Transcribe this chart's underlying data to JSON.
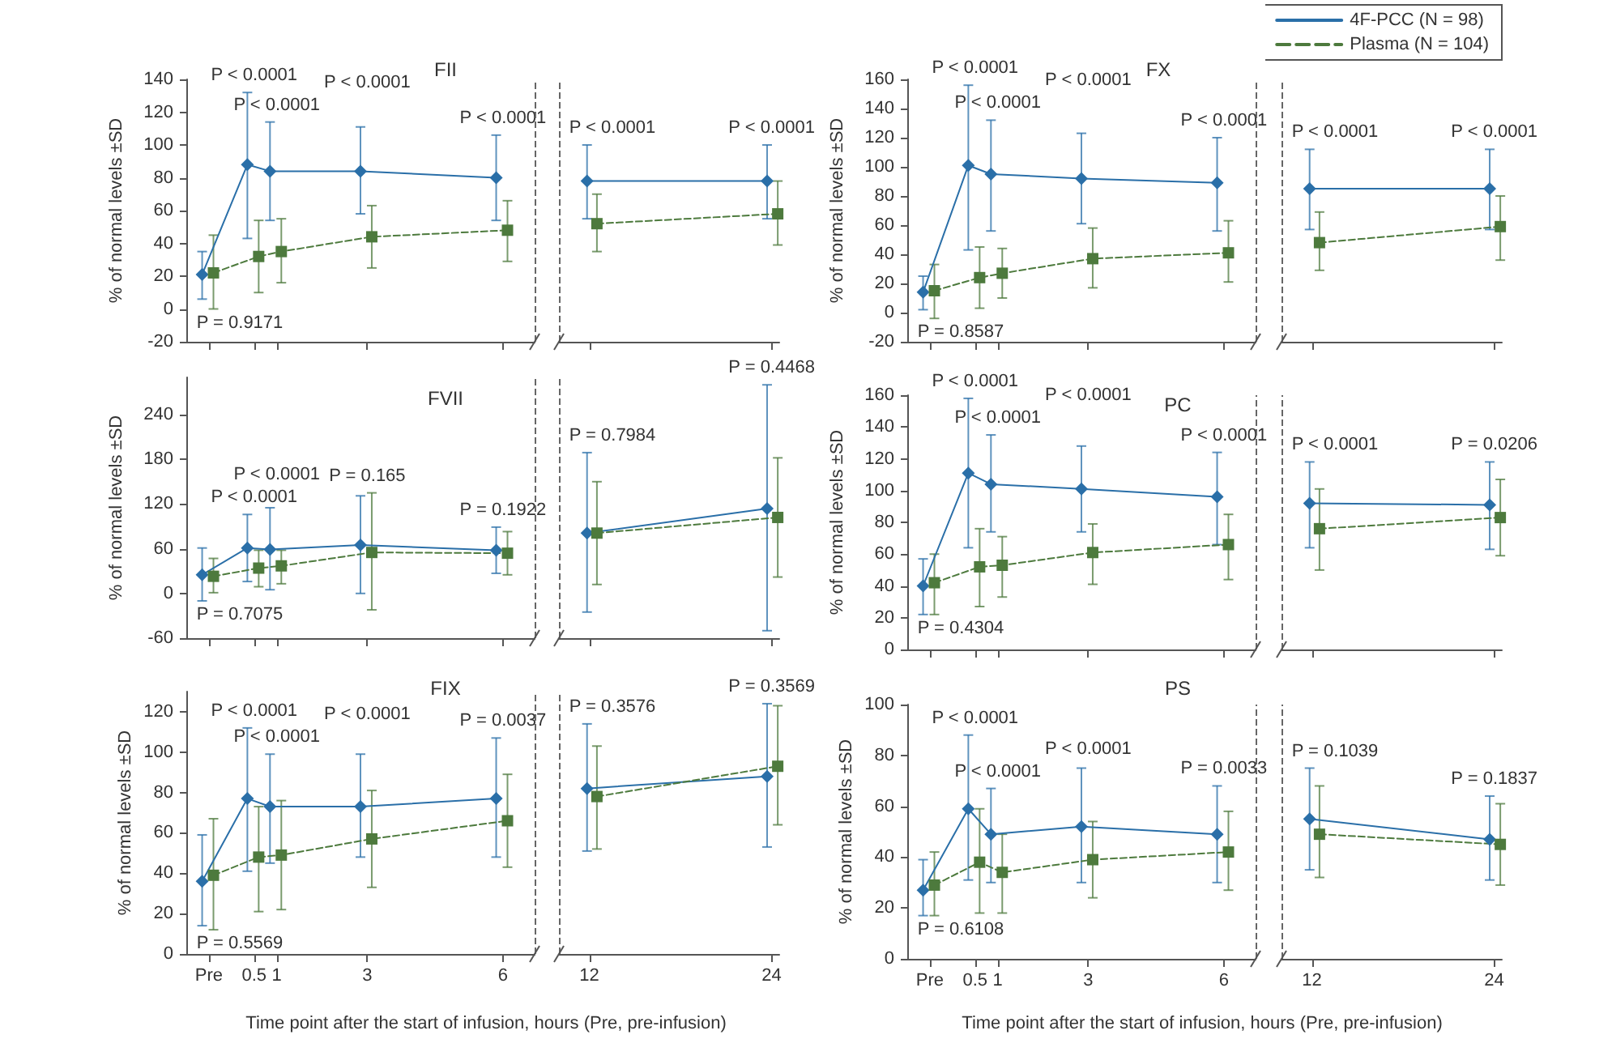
{
  "chart_data": [
    {
      "type": "line",
      "title": "FII",
      "ylabel": "% of normal levels ±SD",
      "tick_labels": "y",
      "xlim": [
        -1,
        6.7
      ],
      "ylim": [
        -20,
        140
      ],
      "xticks": [
        -0.5,
        0.5,
        1,
        3,
        6
      ],
      "yticks": [
        -20,
        0,
        20,
        40,
        60,
        80,
        100,
        120,
        140
      ],
      "series": [
        {
          "color": "#2a6fa8",
          "marker": "diamond",
          "line_style": "solid",
          "x": [
            -0.65,
            0.35,
            0.85,
            2.85,
            5.85
          ],
          "values": [
            21,
            88,
            84,
            84,
            80
          ],
          "errors": [
            [
              6,
              35
            ],
            [
              43,
              132
            ],
            [
              54,
              114
            ],
            [
              58,
              111
            ],
            [
              54,
              106
            ]
          ]
        },
        {
          "color": "#4d7a3d",
          "marker": "square",
          "line_style": "dashed",
          "x": [
            -0.4,
            0.6,
            1.1,
            3.1,
            6.1
          ],
          "values": [
            22,
            32,
            35,
            44,
            48
          ],
          "errors": [
            [
              0,
              45
            ],
            [
              10,
              54
            ],
            [
              16,
              55
            ],
            [
              25,
              63
            ],
            [
              29,
              66
            ]
          ]
        }
      ],
      "ref_lines": [
        {
          "axis": "x",
          "value": 6.7,
          "color": "#666666",
          "line_style": "dashed"
        }
      ],
      "annotations": [
        "P = 0.9171",
        "P < 0.0001",
        "P < 0.0001",
        "P < 0.0001",
        "P < 0.0001"
      ]
    },
    {
      "type": "line",
      "tick_labels": false,
      "xlim": [
        10,
        24.5
      ],
      "ylim": [
        -20,
        140
      ],
      "xticks": [
        12,
        24
      ],
      "series": [
        {
          "color": "#2a6fa8",
          "marker": "diamond",
          "line_style": "solid",
          "x": [
            11.85,
            23.7
          ],
          "values": [
            78,
            78
          ],
          "errors": [
            [
              55,
              100
            ],
            [
              55,
              100
            ]
          ]
        },
        {
          "color": "#4d7a3d",
          "marker": "square",
          "line_style": "dashed",
          "x": [
            12.5,
            24.4
          ],
          "values": [
            52,
            58
          ],
          "errors": [
            [
              35,
              70
            ],
            [
              39,
              78
            ]
          ]
        }
      ],
      "ref_lines": [
        {
          "axis": "x",
          "value": 10,
          "color": "#666666",
          "line_style": "dashed"
        }
      ],
      "annotations": [
        "P < 0.0001",
        "P < 0.0001"
      ]
    },
    {
      "type": "line",
      "title": "FX",
      "ylabel": "% of normal levels ±SD",
      "tick_labels": "y",
      "xlim": [
        -1,
        6.7
      ],
      "ylim": [
        -20,
        160
      ],
      "xticks": [
        -0.5,
        0.5,
        1,
        3,
        6
      ],
      "yticks": [
        -20,
        0,
        20,
        40,
        60,
        80,
        100,
        120,
        140,
        160
      ],
      "series": [
        {
          "color": "#2a6fa8",
          "marker": "diamond",
          "line_style": "solid",
          "x": [
            -0.65,
            0.35,
            0.85,
            2.85,
            5.85
          ],
          "values": [
            14,
            101,
            95,
            92,
            89
          ],
          "errors": [
            [
              2,
              25
            ],
            [
              43,
              156
            ],
            [
              56,
              132
            ],
            [
              61,
              123
            ],
            [
              56,
              120
            ]
          ]
        },
        {
          "color": "#4d7a3d",
          "marker": "square",
          "line_style": "dashed",
          "x": [
            -0.4,
            0.6,
            1.1,
            3.1,
            6.1
          ],
          "values": [
            15,
            24,
            27,
            37,
            41
          ],
          "errors": [
            [
              -4,
              33
            ],
            [
              3,
              45
            ],
            [
              10,
              44
            ],
            [
              17,
              58
            ],
            [
              21,
              63
            ]
          ]
        }
      ],
      "ref_lines": [
        {
          "axis": "x",
          "value": 6.7,
          "color": "#666666",
          "line_style": "dashed"
        }
      ],
      "annotations": [
        "P = 0.8587",
        "P < 0.0001",
        "P < 0.0001",
        "P < 0.0001",
        "P < 0.0001"
      ]
    },
    {
      "type": "line",
      "tick_labels": false,
      "legend": "top right",
      "xlim": [
        10,
        24.5
      ],
      "ylim": [
        -20,
        160
      ],
      "xticks": [
        12,
        24
      ],
      "series": [
        {
          "name": "4F-PCC (N = 98)",
          "color": "#2a6fa8",
          "marker": "diamond",
          "line_style": "solid",
          "x": [
            11.85,
            23.7
          ],
          "values": [
            85,
            85
          ],
          "errors": [
            [
              57,
              112
            ],
            [
              57,
              112
            ]
          ]
        },
        {
          "name": "Plasma (N = 104)",
          "color": "#4d7a3d",
          "marker": "square",
          "line_style": "dashed",
          "x": [
            12.5,
            24.4
          ],
          "values": [
            48,
            59
          ],
          "errors": [
            [
              29,
              69
            ],
            [
              36,
              80
            ]
          ]
        }
      ],
      "ref_lines": [
        {
          "axis": "x",
          "value": 10,
          "color": "#666666",
          "line_style": "dashed"
        }
      ],
      "annotations": [
        "P < 0.0001",
        "P < 0.0001"
      ]
    },
    {
      "type": "line",
      "title": "FVII",
      "ylabel": "% of normal levels ±SD",
      "tick_labels": "y",
      "xlim": [
        -1,
        6.7
      ],
      "ylim": [
        -60,
        290
      ],
      "xticks": [
        -0.5,
        0.5,
        1,
        3,
        6
      ],
      "yticks": [
        -60,
        0,
        60,
        120,
        180,
        240
      ],
      "series": [
        {
          "color": "#2a6fa8",
          "marker": "diamond",
          "line_style": "solid",
          "x": [
            -0.65,
            0.35,
            0.85,
            2.85,
            5.85
          ],
          "values": [
            25,
            61,
            59,
            65,
            58
          ],
          "errors": [
            [
              -10,
              61
            ],
            [
              16,
              106
            ],
            [
              5,
              115
            ],
            [
              0,
              131
            ],
            [
              27,
              89
            ]
          ]
        },
        {
          "color": "#4d7a3d",
          "marker": "square",
          "line_style": "dashed",
          "x": [
            -0.4,
            0.6,
            1.1,
            3.1,
            6.1
          ],
          "values": [
            23,
            34,
            37,
            55,
            54
          ],
          "errors": [
            [
              1,
              47
            ],
            [
              9,
              58
            ],
            [
              13,
              58
            ],
            [
              -22,
              135
            ],
            [
              25,
              83
            ]
          ]
        }
      ],
      "ref_lines": [
        {
          "axis": "x",
          "value": 6.7,
          "color": "#666666",
          "line_style": "dashed"
        }
      ],
      "annotations": [
        "P = 0.7075",
        "P < 0.0001",
        "P < 0.0001",
        "P = 0.165",
        "P = 0.1922"
      ]
    },
    {
      "type": "line",
      "tick_labels": false,
      "xlim": [
        10,
        24.5
      ],
      "ylim": [
        -60,
        290
      ],
      "xticks": [
        12,
        24
      ],
      "series": [
        {
          "color": "#2a6fa8",
          "marker": "diamond",
          "line_style": "solid",
          "x": [
            11.85,
            23.7
          ],
          "values": [
            81,
            114
          ],
          "errors": [
            [
              -25,
              189
            ],
            [
              -50,
              280
            ]
          ]
        },
        {
          "color": "#4d7a3d",
          "marker": "square",
          "line_style": "dashed",
          "x": [
            12.5,
            24.4
          ],
          "values": [
            81,
            102
          ],
          "errors": [
            [
              12,
              150
            ],
            [
              22,
              182
            ]
          ]
        }
      ],
      "ref_lines": [
        {
          "axis": "x",
          "value": 10,
          "color": "#666666",
          "line_style": "dashed"
        }
      ],
      "annotations": [
        "P = 0.7984",
        "P = 0.4468"
      ]
    },
    {
      "type": "line",
      "title": "PC",
      "ylabel": "% of normal levels ±SD",
      "tick_labels": "y",
      "xlim": [
        -1,
        6.7
      ],
      "ylim": [
        0,
        160
      ],
      "xticks": [
        -0.5,
        0.5,
        1,
        3,
        6
      ],
      "yticks": [
        0,
        20,
        40,
        60,
        80,
        100,
        120,
        140,
        160
      ],
      "series": [
        {
          "color": "#2a6fa8",
          "marker": "diamond",
          "line_style": "solid",
          "x": [
            -0.65,
            0.35,
            0.85,
            2.85,
            5.85
          ],
          "values": [
            40,
            111,
            104,
            101,
            96
          ],
          "errors": [
            [
              22,
              57
            ],
            [
              64,
              158
            ],
            [
              74,
              135
            ],
            [
              74,
              128
            ],
            [
              66,
              124
            ]
          ]
        },
        {
          "color": "#4d7a3d",
          "marker": "square",
          "line_style": "dashed",
          "x": [
            -0.4,
            0.6,
            1.1,
            3.1,
            6.1
          ],
          "values": [
            42,
            52,
            53,
            61,
            66
          ],
          "errors": [
            [
              22,
              60
            ],
            [
              27,
              76
            ],
            [
              33,
              71
            ],
            [
              41,
              79
            ],
            [
              44,
              85
            ]
          ]
        }
      ],
      "ref_lines": [
        {
          "axis": "x",
          "value": 6.7,
          "color": "#666666",
          "line_style": "dashed"
        }
      ],
      "annotations": [
        "P = 0.4304",
        "P < 0.0001",
        "P < 0.0001",
        "P < 0.0001",
        "P < 0.0001"
      ]
    },
    {
      "type": "line",
      "tick_labels": false,
      "xlim": [
        10,
        24.5
      ],
      "ylim": [
        0,
        160
      ],
      "xticks": [
        12,
        24
      ],
      "series": [
        {
          "color": "#2a6fa8",
          "marker": "diamond",
          "line_style": "solid",
          "x": [
            11.85,
            23.7
          ],
          "values": [
            92,
            91
          ],
          "errors": [
            [
              64,
              118
            ],
            [
              63,
              118
            ]
          ]
        },
        {
          "color": "#4d7a3d",
          "marker": "square",
          "line_style": "dashed",
          "x": [
            12.5,
            24.4
          ],
          "values": [
            76,
            83
          ],
          "errors": [
            [
              50,
              101
            ],
            [
              59,
              107
            ]
          ]
        }
      ],
      "ref_lines": [
        {
          "axis": "x",
          "value": 10,
          "color": "#666666",
          "line_style": "dashed"
        }
      ],
      "annotations": [
        "P < 0.0001",
        "P = 0.0206"
      ]
    },
    {
      "type": "line",
      "title": "FIX",
      "ylabel": "% of normal levels ±SD",
      "xlabel": "Time point after the start of infusion, hours (Pre, pre-infusion)",
      "xlim": [
        -1,
        6.7
      ],
      "ylim": [
        0,
        130
      ],
      "xticks": [
        {
          "value": -0.5,
          "label": "Pre"
        },
        0.5,
        1,
        3,
        6
      ],
      "yticks": [
        0,
        20,
        40,
        60,
        80,
        100,
        120
      ],
      "series": [
        {
          "color": "#2a6fa8",
          "marker": "diamond",
          "line_style": "solid",
          "x": [
            -0.65,
            0.35,
            0.85,
            2.85,
            5.85
          ],
          "values": [
            36,
            77,
            73,
            73,
            77
          ],
          "errors": [
            [
              14,
              59
            ],
            [
              41,
              112
            ],
            [
              45,
              99
            ],
            [
              48,
              99
            ],
            [
              48,
              107
            ]
          ]
        },
        {
          "color": "#4d7a3d",
          "marker": "square",
          "line_style": "dashed",
          "x": [
            -0.4,
            0.6,
            1.1,
            3.1,
            6.1
          ],
          "values": [
            39,
            48,
            49,
            57,
            66
          ],
          "errors": [
            [
              12,
              67
            ],
            [
              21,
              73
            ],
            [
              22,
              76
            ],
            [
              33,
              81
            ],
            [
              43,
              89
            ]
          ]
        }
      ],
      "ref_lines": [
        {
          "axis": "x",
          "value": 6.7,
          "color": "#666666",
          "line_style": "dashed"
        }
      ],
      "annotations": [
        "P = 0.5569",
        "P < 0.0001",
        "P < 0.0001",
        "P < 0.0001",
        "P = 0.0037"
      ]
    },
    {
      "type": "line",
      "tick_labels": "x",
      "xlim": [
        10,
        24.5
      ],
      "ylim": [
        0,
        130
      ],
      "xticks": [
        12,
        24
      ],
      "series": [
        {
          "color": "#2a6fa8",
          "marker": "diamond",
          "line_style": "solid",
          "x": [
            11.85,
            23.7
          ],
          "values": [
            82,
            88
          ],
          "errors": [
            [
              51,
              114
            ],
            [
              53,
              124
            ]
          ]
        },
        {
          "color": "#4d7a3d",
          "marker": "square",
          "line_style": "dashed",
          "x": [
            12.5,
            24.4
          ],
          "values": [
            78,
            93
          ],
          "errors": [
            [
              52,
              103
            ],
            [
              64,
              123
            ]
          ]
        }
      ],
      "ref_lines": [
        {
          "axis": "x",
          "value": 10,
          "color": "#666666",
          "line_style": "dashed"
        }
      ],
      "annotations": [
        "P = 0.3576",
        "P = 0.3569"
      ]
    },
    {
      "type": "line",
      "title": "PS",
      "ylabel": "% of normal levels ±SD",
      "xlabel": "Time point after the start of infusion, hours (Pre, pre-infusion)",
      "xlim": [
        -1,
        6.7
      ],
      "ylim": [
        0,
        100
      ],
      "xticks": [
        {
          "value": -0.5,
          "label": "Pre"
        },
        0.5,
        1,
        3,
        6
      ],
      "yticks": [
        0,
        20,
        40,
        60,
        80,
        100
      ],
      "series": [
        {
          "color": "#2a6fa8",
          "marker": "diamond",
          "line_style": "solid",
          "x": [
            -0.65,
            0.35,
            0.85,
            2.85,
            5.85
          ],
          "values": [
            27,
            59,
            49,
            52,
            49
          ],
          "errors": [
            [
              17,
              39
            ],
            [
              31,
              88
            ],
            [
              30,
              67
            ],
            [
              30,
              75
            ],
            [
              30,
              68
            ]
          ]
        },
        {
          "color": "#4d7a3d",
          "marker": "square",
          "line_style": "dashed",
          "x": [
            -0.4,
            0.6,
            1.1,
            3.1,
            6.1
          ],
          "values": [
            29,
            38,
            34,
            39,
            42
          ],
          "errors": [
            [
              17,
              42
            ],
            [
              18,
              59
            ],
            [
              18,
              49
            ],
            [
              24,
              54
            ],
            [
              27,
              58
            ]
          ]
        }
      ],
      "ref_lines": [
        {
          "axis": "x",
          "value": 6.7,
          "color": "#666666",
          "line_style": "dashed"
        }
      ],
      "annotations": [
        "P = 0.6108",
        "P < 0.0001",
        "P < 0.0001",
        "P < 0.0001",
        "P = 0.0033"
      ]
    },
    {
      "type": "line",
      "tick_labels": "x",
      "xlim": [
        10,
        24.5
      ],
      "ylim": [
        0,
        100
      ],
      "xticks": [
        12,
        24
      ],
      "series": [
        {
          "color": "#2a6fa8",
          "marker": "diamond",
          "line_style": "solid",
          "x": [
            11.85,
            23.7
          ],
          "values": [
            55,
            47
          ],
          "errors": [
            [
              35,
              75
            ],
            [
              31,
              64
            ]
          ]
        },
        {
          "color": "#4d7a3d",
          "marker": "square",
          "line_style": "dashed",
          "x": [
            12.5,
            24.4
          ],
          "values": [
            49,
            45
          ],
          "errors": [
            [
              32,
              68
            ],
            [
              29,
              61
            ]
          ]
        }
      ],
      "ref_lines": [
        {
          "axis": "x",
          "value": 10,
          "color": "#666666",
          "line_style": "dashed"
        }
      ],
      "annotations": [
        "P = 0.1039",
        "P = 0.1837"
      ]
    }
  ]
}
